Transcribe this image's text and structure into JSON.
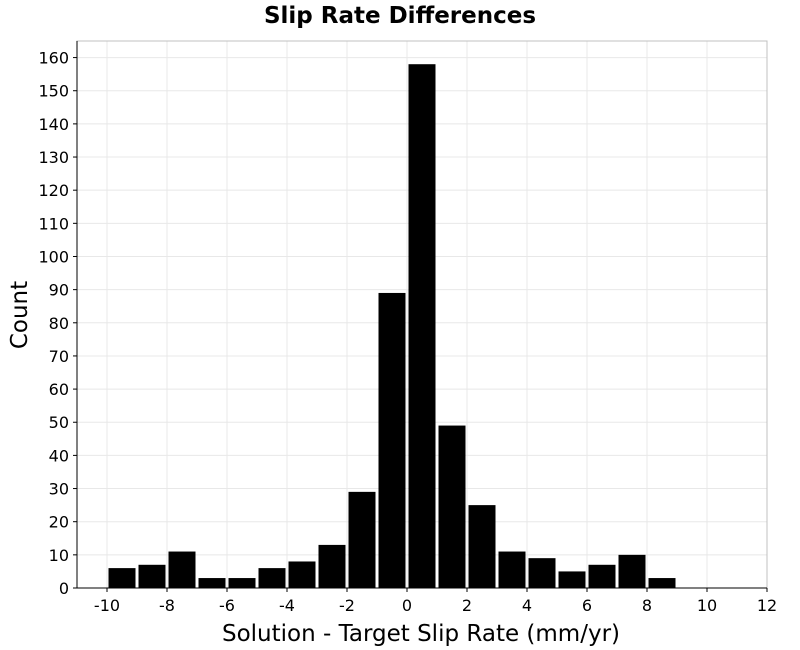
{
  "chart_data": {
    "type": "bar",
    "title": "Slip Rate Differences",
    "xlabel": "Solution - Target Slip Rate (mm/yr)",
    "ylabel": "Count",
    "bin_width": 1,
    "x": [
      -9.5,
      -8.5,
      -7.5,
      -6.5,
      -5.5,
      -4.5,
      -3.5,
      -2.5,
      -1.5,
      -0.5,
      0.5,
      1.5,
      2.5,
      3.5,
      4.5,
      5.5,
      6.5,
      7.5,
      8.5
    ],
    "values": [
      6,
      7,
      11,
      3,
      3,
      6,
      8,
      13,
      29,
      89,
      158,
      49,
      25,
      11,
      9,
      5,
      7,
      10,
      3
    ],
    "xlim": [
      -11,
      12
    ],
    "ylim": [
      0,
      165
    ],
    "xticks": [
      -10,
      -8,
      -6,
      -4,
      -2,
      0,
      2,
      4,
      6,
      8,
      10,
      12
    ],
    "xtick_labels": [
      "-10",
      "-8",
      "-6",
      "-4",
      "-2",
      "0",
      "2",
      "4",
      "6",
      "8",
      "10",
      "12"
    ],
    "yticks": [
      0,
      10,
      20,
      30,
      40,
      50,
      60,
      70,
      80,
      90,
      100,
      110,
      120,
      130,
      140,
      150,
      160
    ],
    "ytick_labels": [
      "0",
      "10",
      "20",
      "30",
      "40",
      "50",
      "60",
      "70",
      "80",
      "90",
      "100",
      "110",
      "120",
      "130",
      "140",
      "150",
      "160"
    ],
    "bar_color": "#000000",
    "grid": true,
    "grid_color": "#e8e8e8"
  }
}
